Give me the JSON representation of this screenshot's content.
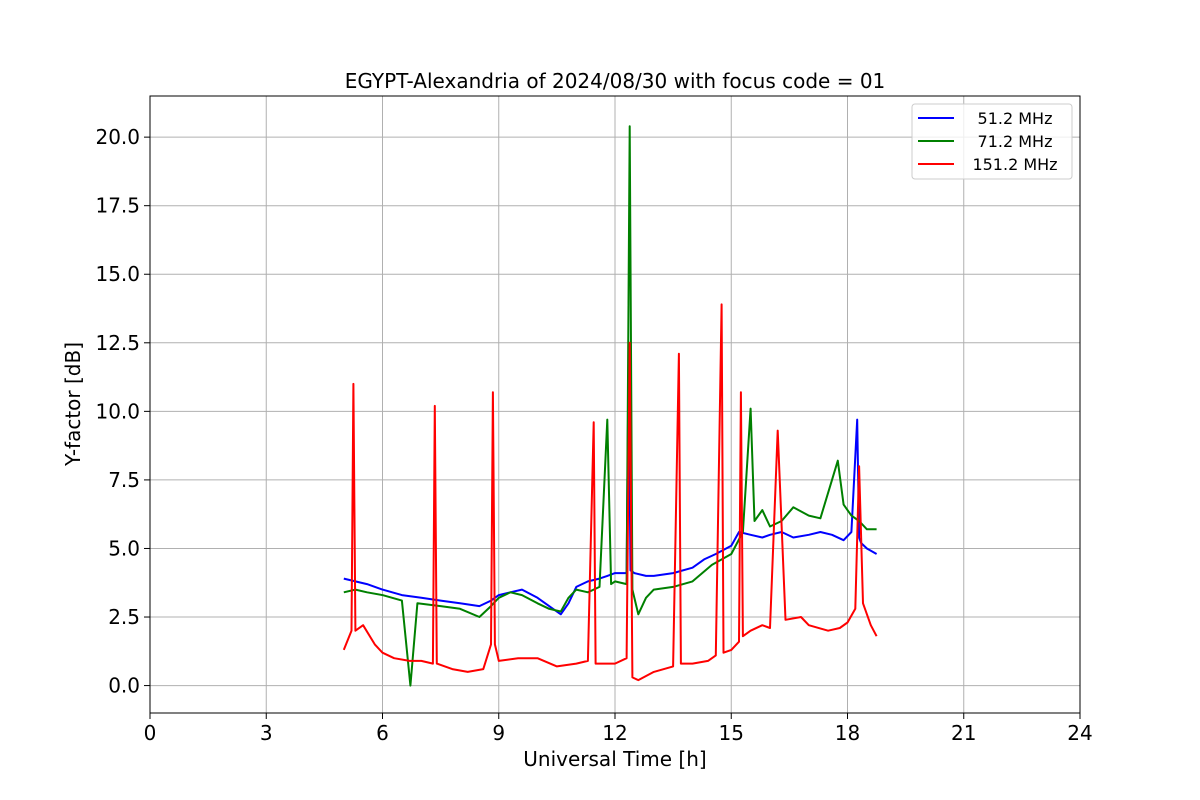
{
  "chart_data": {
    "type": "line",
    "title": "EGYPT-Alexandria of 2024/08/30 with focus code = 01",
    "xlabel": "Universal Time [h]",
    "ylabel": "Y-factor [dB]",
    "xlim": [
      0,
      24
    ],
    "ylim": [
      -1.0,
      21.5
    ],
    "xticks": [
      0,
      3,
      6,
      9,
      12,
      15,
      18,
      21,
      24
    ],
    "xtick_labels": [
      "0",
      "3",
      "6",
      "9",
      "12",
      "15",
      "18",
      "21",
      "24"
    ],
    "yticks": [
      0,
      2.5,
      5,
      7.5,
      10,
      12.5,
      15,
      17.5,
      20
    ],
    "ytick_labels": [
      "0.0",
      "2.5",
      "5.0",
      "7.5",
      "10.0",
      "12.5",
      "15.0",
      "17.5",
      "20.0"
    ],
    "grid": true,
    "legend_position": "top-right",
    "series": [
      {
        "name": "51.2 MHz",
        "color": "#0000ff",
        "x": [
          5.0,
          5.3,
          5.6,
          6.0,
          6.5,
          7.0,
          7.5,
          8.0,
          8.5,
          8.8,
          9.0,
          9.3,
          9.6,
          10.0,
          10.3,
          10.6,
          10.8,
          11.0,
          11.3,
          11.6,
          11.8,
          12.0,
          12.3,
          12.35,
          12.4,
          12.5,
          12.8,
          13.0,
          13.5,
          14.0,
          14.3,
          14.6,
          15.0,
          15.2,
          15.5,
          15.8,
          16.0,
          16.3,
          16.6,
          17.0,
          17.3,
          17.6,
          17.9,
          18.1,
          18.25,
          18.3,
          18.35,
          18.5,
          18.75
        ],
        "y": [
          3.9,
          3.8,
          3.7,
          3.5,
          3.3,
          3.2,
          3.1,
          3.0,
          2.9,
          3.1,
          3.3,
          3.4,
          3.5,
          3.2,
          2.9,
          2.6,
          3.0,
          3.6,
          3.8,
          3.9,
          4.0,
          4.1,
          4.1,
          12.0,
          4.2,
          4.1,
          4.0,
          4.0,
          4.1,
          4.3,
          4.6,
          4.8,
          5.1,
          5.6,
          5.5,
          5.4,
          5.5,
          5.6,
          5.4,
          5.5,
          5.6,
          5.5,
          5.3,
          5.6,
          9.7,
          5.4,
          5.2,
          5.0,
          4.8
        ]
      },
      {
        "name": "71.2 MHz",
        "color": "#008000",
        "x": [
          5.0,
          5.3,
          5.6,
          6.0,
          6.5,
          6.72,
          6.9,
          7.5,
          8.0,
          8.5,
          8.8,
          9.0,
          9.3,
          9.6,
          10.0,
          10.3,
          10.6,
          10.8,
          11.0,
          11.3,
          11.6,
          11.8,
          11.9,
          12.0,
          12.3,
          12.38,
          12.45,
          12.6,
          12.8,
          13.0,
          13.5,
          14.0,
          14.5,
          15.0,
          15.3,
          15.5,
          15.6,
          15.8,
          16.0,
          16.3,
          16.6,
          17.0,
          17.3,
          17.6,
          17.75,
          17.9,
          18.1,
          18.3,
          18.5,
          18.75
        ],
        "y": [
          3.4,
          3.5,
          3.4,
          3.3,
          3.1,
          0.0,
          3.0,
          2.9,
          2.8,
          2.5,
          2.9,
          3.2,
          3.4,
          3.3,
          3.0,
          2.8,
          2.7,
          3.2,
          3.5,
          3.4,
          3.6,
          9.7,
          3.7,
          3.8,
          3.7,
          20.4,
          3.5,
          2.6,
          3.2,
          3.5,
          3.6,
          3.8,
          4.4,
          4.8,
          5.6,
          10.1,
          6.0,
          6.4,
          5.8,
          6.0,
          6.5,
          6.2,
          6.1,
          7.5,
          8.2,
          6.6,
          6.2,
          6.0,
          5.7,
          5.7
        ]
      },
      {
        "name": "151.2 MHz",
        "color": "#ff0000",
        "x": [
          5.0,
          5.2,
          5.25,
          5.3,
          5.5,
          5.8,
          6.0,
          6.3,
          6.7,
          7.0,
          7.3,
          7.35,
          7.4,
          7.8,
          8.2,
          8.6,
          8.8,
          8.85,
          8.9,
          9.0,
          9.5,
          10.0,
          10.5,
          11.0,
          11.3,
          11.45,
          11.5,
          12.0,
          12.3,
          12.38,
          12.45,
          12.6,
          13.0,
          13.5,
          13.65,
          13.7,
          14.0,
          14.4,
          14.6,
          14.75,
          14.8,
          15.0,
          15.2,
          15.25,
          15.3,
          15.5,
          15.8,
          16.0,
          16.2,
          16.4,
          16.8,
          17.0,
          17.5,
          17.8,
          18.0,
          18.2,
          18.3,
          18.4,
          18.6,
          18.75
        ],
        "y": [
          1.3,
          2.0,
          11.0,
          2.0,
          2.2,
          1.5,
          1.2,
          1.0,
          0.9,
          0.9,
          0.8,
          10.2,
          0.8,
          0.6,
          0.5,
          0.6,
          1.5,
          10.7,
          1.5,
          0.9,
          1.0,
          1.0,
          0.7,
          0.8,
          0.9,
          9.6,
          0.8,
          0.8,
          1.0,
          12.5,
          0.3,
          0.2,
          0.5,
          0.7,
          12.1,
          0.8,
          0.8,
          0.9,
          1.1,
          13.9,
          1.2,
          1.3,
          1.6,
          10.7,
          1.8,
          2.0,
          2.2,
          2.1,
          9.3,
          2.4,
          2.5,
          2.2,
          2.0,
          2.1,
          2.3,
          2.8,
          8.0,
          3.0,
          2.2,
          1.8
        ]
      }
    ]
  }
}
